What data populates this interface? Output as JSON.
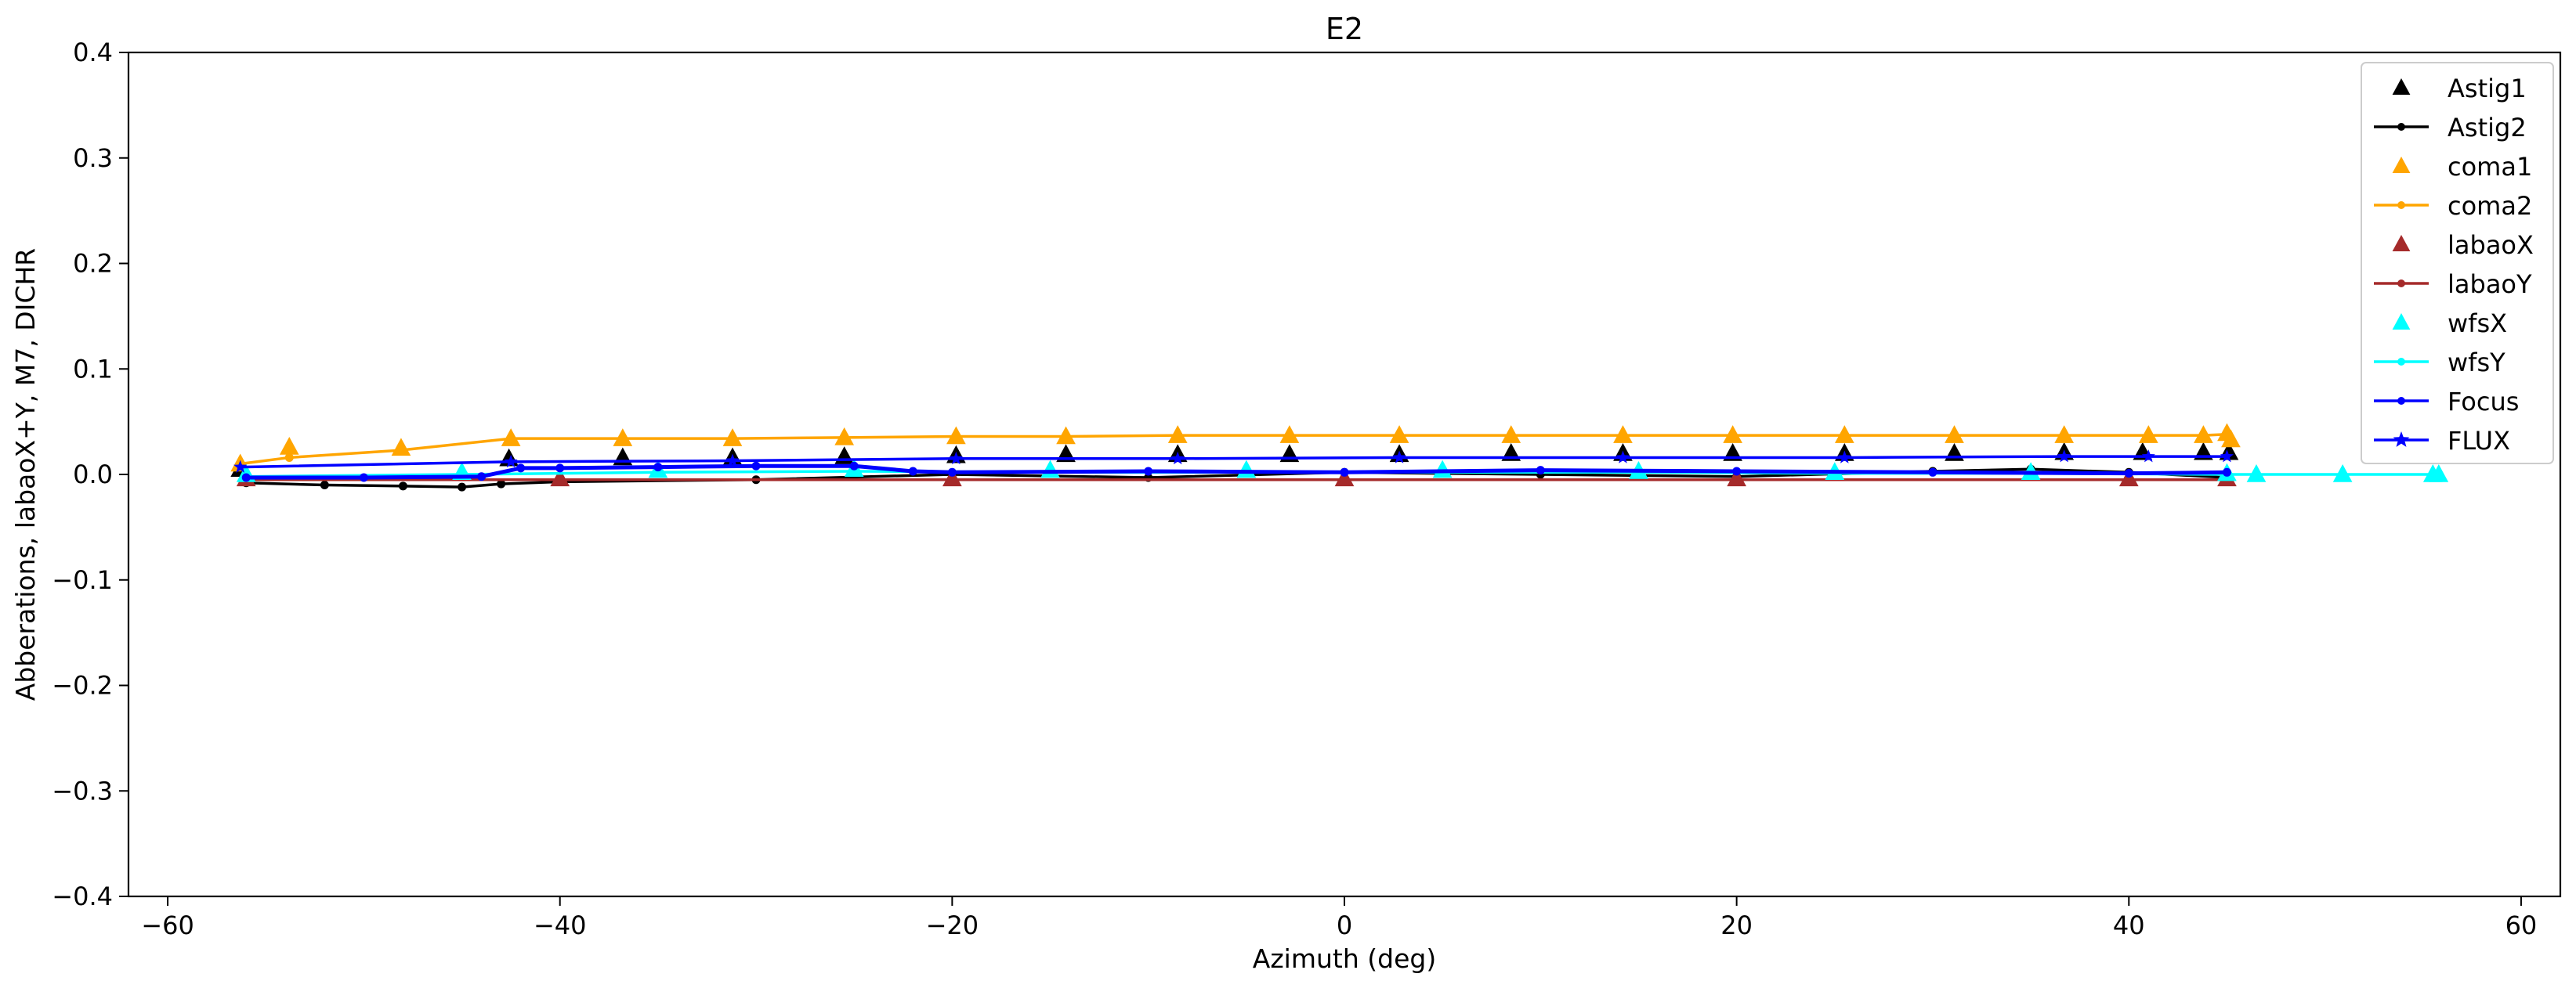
{
  "chart_data": {
    "type": "line",
    "title": "E2",
    "xlabel": "Azimuth (deg)",
    "ylabel": "Abberations, labaoX+Y, M7, DICHR",
    "xlim": [
      -62,
      62
    ],
    "ylim": [
      -0.4,
      0.4
    ],
    "x_ticks": [
      -60,
      -40,
      -20,
      0,
      20,
      40,
      60
    ],
    "x_tick_labels": [
      "−60",
      "−40",
      "−20",
      "0",
      "20",
      "40",
      "60"
    ],
    "y_ticks": [
      0.4,
      0.3,
      0.2,
      0.1,
      0.0,
      -0.1,
      -0.2,
      -0.3,
      -0.4
    ],
    "y_tick_labels": [
      "0.4",
      "0.3",
      "0.2",
      "0.1",
      "0.0",
      "−0.1",
      "−0.2",
      "−0.3",
      "−0.4"
    ],
    "grid": false,
    "legend_position": "top-right",
    "series": [
      {
        "name": "Astig1",
        "color": "#000000",
        "marker": "triangle",
        "line": false,
        "x": [
          -56.3,
          -42.6,
          -36.8,
          -31.2,
          -25.5,
          -19.8,
          -14.2,
          -8.5,
          -2.8,
          2.8,
          8.5,
          14.2,
          19.8,
          25.5,
          31.1,
          36.7,
          40.7,
          43.8,
          45.1
        ],
        "y": [
          0.005,
          0.015,
          0.016,
          0.016,
          0.017,
          0.018,
          0.019,
          0.019,
          0.019,
          0.019,
          0.02,
          0.02,
          0.02,
          0.02,
          0.02,
          0.021,
          0.021,
          0.021,
          0.021
        ]
      },
      {
        "name": "Astig2",
        "color": "#000000",
        "marker": "dot",
        "line": true,
        "x": [
          -56,
          -52,
          -48,
          -45,
          -43,
          -40,
          -30,
          -20,
          -10,
          0,
          10,
          20,
          30,
          35,
          40,
          45
        ],
        "y": [
          -0.008,
          -0.01,
          -0.011,
          -0.012,
          -0.009,
          -0.007,
          -0.005,
          0.0,
          -0.003,
          0.002,
          0.0,
          -0.002,
          0.003,
          0.005,
          0.002,
          -0.003
        ]
      },
      {
        "name": "coma1",
        "color": "#ffa500",
        "marker": "triangle",
        "line": false,
        "x": [
          -56.3,
          -53.8,
          -48.1,
          -42.5,
          -36.8,
          -31.2,
          -25.5,
          -19.8,
          -14.2,
          -8.5,
          -2.8,
          2.8,
          8.5,
          14.2,
          19.8,
          25.5,
          31.1,
          36.7,
          41.0,
          43.8,
          45.0,
          45.2
        ],
        "y": [
          0.01,
          0.026,
          0.025,
          0.034,
          0.034,
          0.034,
          0.035,
          0.036,
          0.036,
          0.037,
          0.037,
          0.037,
          0.037,
          0.037,
          0.037,
          0.037,
          0.037,
          0.037,
          0.037,
          0.037,
          0.039,
          0.033
        ]
      },
      {
        "name": "coma2",
        "color": "#ffa500",
        "marker": "dot",
        "line": true,
        "x": [
          -56.3,
          -53.8,
          -48.1,
          -42.5,
          -36.8,
          -31.2,
          -25.5,
          -19.8,
          -14.2,
          -8.5,
          -2.8,
          2.8,
          8.5,
          14.2,
          19.8,
          25.5,
          31.1,
          36.7,
          41.0,
          43.8,
          45.0
        ],
        "y": [
          0.01,
          0.016,
          0.023,
          0.034,
          0.034,
          0.034,
          0.035,
          0.036,
          0.036,
          0.037,
          0.037,
          0.037,
          0.037,
          0.037,
          0.037,
          0.037,
          0.037,
          0.037,
          0.037,
          0.037,
          0.038
        ]
      },
      {
        "name": "labaoX",
        "color": "#a52a2a",
        "marker": "triangle",
        "line": false,
        "x": [
          -56,
          -40,
          -20,
          0,
          20,
          40,
          45
        ],
        "y": [
          -0.004,
          -0.004,
          -0.004,
          -0.004,
          -0.004,
          -0.004,
          -0.004
        ]
      },
      {
        "name": "labaoY",
        "color": "#a52a2a",
        "marker": "dot",
        "line": true,
        "x": [
          -56,
          -40,
          -20,
          0,
          20,
          40,
          45
        ],
        "y": [
          -0.005,
          -0.005,
          -0.005,
          -0.005,
          -0.005,
          -0.005,
          -0.005
        ]
      },
      {
        "name": "wfsX",
        "color": "#00ffff",
        "marker": "triangle",
        "line": false,
        "x": [
          -56,
          -45,
          -35,
          -25,
          -15,
          -5,
          5,
          15,
          25,
          35,
          45,
          46.5,
          50.9,
          55.5,
          55.8
        ],
        "y": [
          0.0,
          0.002,
          0.004,
          0.005,
          0.004,
          0.004,
          0.004,
          0.003,
          0.002,
          0.002,
          0.001,
          0.0,
          0.0,
          0.0,
          0.0
        ]
      },
      {
        "name": "wfsY",
        "color": "#00ffff",
        "marker": "dot",
        "line": true,
        "x": [
          -56,
          -45,
          -35,
          -25,
          -15,
          -5,
          5,
          15,
          25,
          35,
          45,
          46.5,
          50.9,
          55.5,
          55.8
        ],
        "y": [
          -0.002,
          0.0,
          0.002,
          0.003,
          0.002,
          0.002,
          0.002,
          0.002,
          0.001,
          0.001,
          0.0,
          0.0,
          0.0,
          0.0,
          0.0
        ]
      },
      {
        "name": "Focus",
        "color": "#0000ff",
        "marker": "dot",
        "line": true,
        "x": [
          -56,
          -50,
          -44,
          -42,
          -40,
          -35,
          -30,
          -25,
          -22,
          -20,
          -10,
          0,
          10,
          20,
          30,
          40,
          45
        ],
        "y": [
          -0.003,
          -0.003,
          -0.002,
          0.006,
          0.006,
          0.007,
          0.008,
          0.008,
          0.003,
          0.002,
          0.003,
          0.002,
          0.004,
          0.003,
          0.002,
          0.001,
          0.002
        ]
      },
      {
        "name": "FLUX",
        "color": "#0000ff",
        "marker": "star",
        "line": true,
        "x": [
          -56.3,
          -42.5,
          -31.2,
          -19.8,
          -8.5,
          2.8,
          14.2,
          25.5,
          36.7,
          41.0,
          45.0
        ],
        "y": [
          0.007,
          0.012,
          0.013,
          0.015,
          0.015,
          0.016,
          0.016,
          0.016,
          0.017,
          0.017,
          0.017
        ]
      }
    ]
  }
}
